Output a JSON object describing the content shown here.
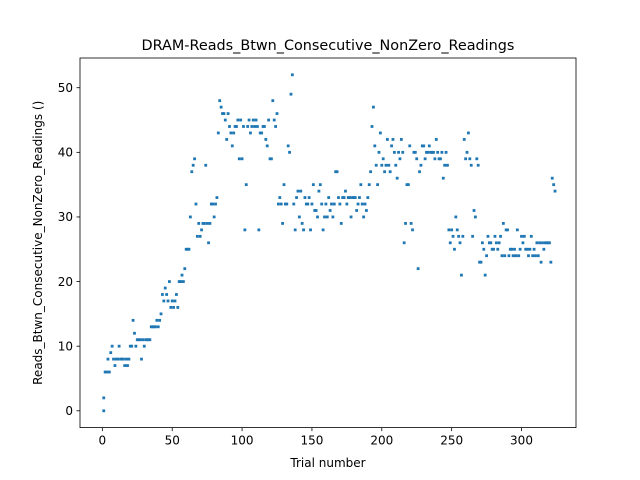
{
  "chart_data": {
    "type": "scatter",
    "title": "DRAM-Reads_Btwn_Consecutive_NonZero_Readings",
    "xlabel": "Trial number",
    "ylabel": "Reads_Btwn_Consecutive_NonZero_Readings ()",
    "xlim": [
      -16,
      339
    ],
    "ylim": [
      -2.6,
      54.6
    ],
    "xticks": [
      0,
      50,
      100,
      150,
      200,
      250,
      300
    ],
    "yticks": [
      0,
      10,
      20,
      30,
      40,
      50
    ],
    "grid": false,
    "marker_color": "#1f77b4",
    "series": [
      {
        "points": [
          [
            1,
            0
          ],
          [
            1,
            2
          ],
          [
            2,
            6
          ],
          [
            3,
            6
          ],
          [
            4,
            8
          ],
          [
            5,
            6
          ],
          [
            6,
            9
          ],
          [
            7,
            10
          ],
          [
            8,
            8
          ],
          [
            9,
            7
          ],
          [
            10,
            8
          ],
          [
            11,
            8
          ],
          [
            12,
            10
          ],
          [
            13,
            8
          ],
          [
            14,
            8
          ],
          [
            15,
            8
          ],
          [
            16,
            7
          ],
          [
            17,
            8
          ],
          [
            18,
            7
          ],
          [
            19,
            8
          ],
          [
            20,
            10
          ],
          [
            21,
            10
          ],
          [
            22,
            14
          ],
          [
            23,
            12
          ],
          [
            24,
            10
          ],
          [
            25,
            11
          ],
          [
            26,
            11
          ],
          [
            27,
            11
          ],
          [
            28,
            8
          ],
          [
            29,
            11
          ],
          [
            30,
            10
          ],
          [
            31,
            11
          ],
          [
            32,
            11
          ],
          [
            33,
            11
          ],
          [
            34,
            11
          ],
          [
            35,
            13
          ],
          [
            36,
            13
          ],
          [
            37,
            13
          ],
          [
            38,
            13
          ],
          [
            39,
            14
          ],
          [
            40,
            13
          ],
          [
            41,
            14
          ],
          [
            42,
            15
          ],
          [
            43,
            18
          ],
          [
            44,
            17
          ],
          [
            45,
            19
          ],
          [
            46,
            18
          ],
          [
            47,
            17
          ],
          [
            48,
            20
          ],
          [
            49,
            16
          ],
          [
            50,
            17
          ],
          [
            51,
            16
          ],
          [
            52,
            17
          ],
          [
            53,
            18
          ],
          [
            54,
            16
          ],
          [
            55,
            20
          ],
          [
            56,
            20
          ],
          [
            57,
            21
          ],
          [
            58,
            20
          ],
          [
            59,
            22
          ],
          [
            60,
            25
          ],
          [
            61,
            25
          ],
          [
            62,
            25
          ],
          [
            63,
            30
          ],
          [
            64,
            37
          ],
          [
            65,
            38
          ],
          [
            66,
            39
          ],
          [
            67,
            32
          ],
          [
            68,
            27
          ],
          [
            69,
            29
          ],
          [
            70,
            27
          ],
          [
            71,
            28
          ],
          [
            72,
            29
          ],
          [
            73,
            29
          ],
          [
            74,
            38
          ],
          [
            75,
            29
          ],
          [
            76,
            26
          ],
          [
            77,
            29
          ],
          [
            78,
            32
          ],
          [
            79,
            32
          ],
          [
            80,
            30
          ],
          [
            81,
            32
          ],
          [
            82,
            33
          ],
          [
            83,
            43
          ],
          [
            84,
            48
          ],
          [
            85,
            47
          ],
          [
            86,
            46
          ],
          [
            87,
            46
          ],
          [
            88,
            45
          ],
          [
            89,
            42
          ],
          [
            90,
            46
          ],
          [
            91,
            44
          ],
          [
            92,
            43
          ],
          [
            93,
            41
          ],
          [
            94,
            43
          ],
          [
            95,
            44
          ],
          [
            96,
            44
          ],
          [
            97,
            45
          ],
          [
            98,
            39
          ],
          [
            99,
            45
          ],
          [
            100,
            39
          ],
          [
            101,
            44
          ],
          [
            102,
            28
          ],
          [
            103,
            35
          ],
          [
            104,
            44
          ],
          [
            105,
            45
          ],
          [
            106,
            43
          ],
          [
            107,
            44
          ],
          [
            108,
            45
          ],
          [
            109,
            44
          ],
          [
            110,
            45
          ],
          [
            111,
            44
          ],
          [
            112,
            28
          ],
          [
            113,
            43
          ],
          [
            114,
            43
          ],
          [
            115,
            44
          ],
          [
            116,
            44
          ],
          [
            117,
            42
          ],
          [
            118,
            41
          ],
          [
            119,
            45
          ],
          [
            120,
            39
          ],
          [
            121,
            39
          ],
          [
            122,
            48
          ],
          [
            123,
            45
          ],
          [
            124,
            44
          ],
          [
            125,
            46
          ],
          [
            126,
            32
          ],
          [
            127,
            33
          ],
          [
            128,
            32
          ],
          [
            129,
            29
          ],
          [
            130,
            35
          ],
          [
            131,
            32
          ],
          [
            132,
            32
          ],
          [
            133,
            41
          ],
          [
            134,
            40
          ],
          [
            135,
            49
          ],
          [
            136,
            52
          ],
          [
            137,
            32
          ],
          [
            138,
            28
          ],
          [
            139,
            33
          ],
          [
            140,
            34
          ],
          [
            141,
            30
          ],
          [
            142,
            34
          ],
          [
            143,
            29
          ],
          [
            144,
            28
          ],
          [
            145,
            33
          ],
          [
            146,
            32
          ],
          [
            147,
            32
          ],
          [
            148,
            33
          ],
          [
            149,
            28
          ],
          [
            150,
            32
          ],
          [
            151,
            35
          ],
          [
            152,
            31
          ],
          [
            153,
            31
          ],
          [
            154,
            30
          ],
          [
            155,
            34
          ],
          [
            156,
            35
          ],
          [
            157,
            32
          ],
          [
            158,
            28
          ],
          [
            159,
            30
          ],
          [
            160,
            32
          ],
          [
            161,
            30
          ],
          [
            162,
            33
          ],
          [
            163,
            31
          ],
          [
            164,
            32
          ],
          [
            165,
            30
          ],
          [
            166,
            32
          ],
          [
            167,
            37
          ],
          [
            168,
            37
          ],
          [
            169,
            33
          ],
          [
            170,
            32
          ],
          [
            171,
            29
          ],
          [
            172,
            33
          ],
          [
            173,
            33
          ],
          [
            174,
            34
          ],
          [
            175,
            32
          ],
          [
            176,
            33
          ],
          [
            177,
            33
          ],
          [
            178,
            30
          ],
          [
            179,
            33
          ],
          [
            180,
            33
          ],
          [
            181,
            33
          ],
          [
            182,
            31
          ],
          [
            183,
            32
          ],
          [
            184,
            33
          ],
          [
            185,
            35
          ],
          [
            186,
            32
          ],
          [
            187,
            30
          ],
          [
            188,
            32
          ],
          [
            189,
            31
          ],
          [
            190,
            33
          ],
          [
            191,
            35
          ],
          [
            192,
            37
          ],
          [
            193,
            44
          ],
          [
            194,
            47
          ],
          [
            195,
            41
          ],
          [
            196,
            38
          ],
          [
            197,
            35
          ],
          [
            198,
            40
          ],
          [
            199,
            43
          ],
          [
            200,
            38
          ],
          [
            201,
            39
          ],
          [
            202,
            37
          ],
          [
            203,
            38
          ],
          [
            204,
            42
          ],
          [
            205,
            38
          ],
          [
            206,
            37
          ],
          [
            207,
            41
          ],
          [
            208,
            42
          ],
          [
            209,
            40
          ],
          [
            210,
            38
          ],
          [
            211,
            36
          ],
          [
            212,
            40
          ],
          [
            213,
            39
          ],
          [
            214,
            42
          ],
          [
            215,
            40
          ],
          [
            216,
            26
          ],
          [
            217,
            29
          ],
          [
            218,
            35
          ],
          [
            219,
            35
          ],
          [
            220,
            41
          ],
          [
            221,
            29
          ],
          [
            222,
            28
          ],
          [
            223,
            40
          ],
          [
            224,
            40
          ],
          [
            225,
            39
          ],
          [
            226,
            22
          ],
          [
            227,
            37
          ],
          [
            228,
            38
          ],
          [
            229,
            41
          ],
          [
            230,
            41
          ],
          [
            231,
            39
          ],
          [
            232,
            40
          ],
          [
            233,
            40
          ],
          [
            234,
            41
          ],
          [
            235,
            40
          ],
          [
            236,
            40
          ],
          [
            237,
            40
          ],
          [
            238,
            39
          ],
          [
            239,
            42
          ],
          [
            240,
            40
          ],
          [
            241,
            39
          ],
          [
            242,
            39
          ],
          [
            243,
            40
          ],
          [
            244,
            36
          ],
          [
            245,
            38
          ],
          [
            246,
            40
          ],
          [
            247,
            38
          ],
          [
            248,
            28
          ],
          [
            249,
            26
          ],
          [
            250,
            28
          ],
          [
            251,
            27
          ],
          [
            252,
            25
          ],
          [
            253,
            30
          ],
          [
            254,
            28
          ],
          [
            255,
            27
          ],
          [
            256,
            26
          ],
          [
            257,
            21
          ],
          [
            258,
            27
          ],
          [
            259,
            42
          ],
          [
            260,
            39
          ],
          [
            261,
            40
          ],
          [
            262,
            43
          ],
          [
            263,
            39
          ],
          [
            264,
            38
          ],
          [
            265,
            27
          ],
          [
            266,
            31
          ],
          [
            267,
            30
          ],
          [
            268,
            39
          ],
          [
            269,
            38
          ],
          [
            270,
            23
          ],
          [
            271,
            23
          ],
          [
            272,
            26
          ],
          [
            273,
            25
          ],
          [
            274,
            21
          ],
          [
            275,
            24
          ],
          [
            276,
            27
          ],
          [
            277,
            26
          ],
          [
            278,
            26
          ],
          [
            279,
            25
          ],
          [
            280,
            25
          ],
          [
            281,
            27
          ],
          [
            282,
            26
          ],
          [
            283,
            25
          ],
          [
            284,
            26
          ],
          [
            285,
            27
          ],
          [
            286,
            24
          ],
          [
            287,
            29
          ],
          [
            288,
            24
          ],
          [
            289,
            28
          ],
          [
            290,
            28
          ],
          [
            291,
            24
          ],
          [
            292,
            25
          ],
          [
            293,
            25
          ],
          [
            294,
            24
          ],
          [
            295,
            25
          ],
          [
            296,
            24
          ],
          [
            297,
            28
          ],
          [
            298,
            24
          ],
          [
            299,
            25
          ],
          [
            300,
            27
          ],
          [
            301,
            26
          ],
          [
            302,
            27
          ],
          [
            303,
            25
          ],
          [
            304,
            25
          ],
          [
            305,
            24
          ],
          [
            306,
            25
          ],
          [
            307,
            27
          ],
          [
            308,
            24
          ],
          [
            309,
            25
          ],
          [
            310,
            24
          ],
          [
            311,
            26
          ],
          [
            312,
            24
          ],
          [
            313,
            26
          ],
          [
            314,
            23
          ],
          [
            315,
            26
          ],
          [
            316,
            25
          ],
          [
            317,
            26
          ],
          [
            318,
            26
          ],
          [
            319,
            26
          ],
          [
            320,
            26
          ],
          [
            321,
            23
          ],
          [
            322,
            36
          ],
          [
            323,
            35
          ],
          [
            324,
            34
          ]
        ]
      }
    ]
  }
}
